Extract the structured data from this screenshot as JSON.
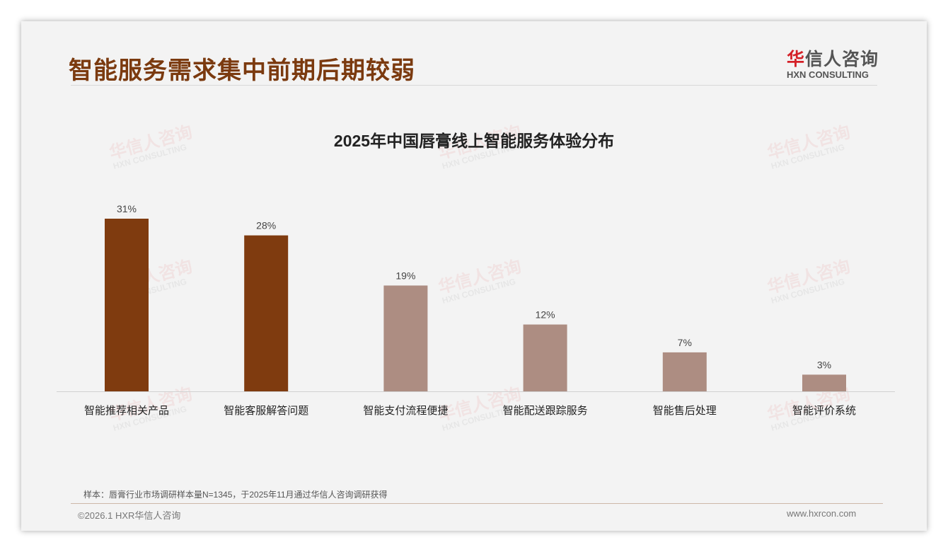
{
  "header": {
    "title": "智能服务需求集中前期后期较弱",
    "logo_cn_accent": "华",
    "logo_cn_rest": "信人咨询",
    "logo_en": "HXN CONSULTING"
  },
  "watermark": {
    "cn": "华信人咨询",
    "en": "HXN CONSULTING"
  },
  "chart_data": {
    "type": "bar",
    "title": "2025年中国唇膏线上智能服务体验分布",
    "categories": [
      "智能推荐相关产品",
      "智能客服解答问题",
      "智能支付流程便捷",
      "智能配送跟踪服务",
      "智能售后处理",
      "智能评价系统"
    ],
    "values": [
      31,
      28,
      19,
      12,
      7,
      3
    ],
    "labels": [
      "31%",
      "28%",
      "19%",
      "12%",
      "7%",
      "3%"
    ],
    "highlight": [
      true,
      true,
      false,
      false,
      false,
      false
    ],
    "colors": {
      "highlight": "#7f3b0f",
      "normal": "#ad8d82"
    },
    "ylim": [
      0,
      31
    ],
    "xlabel": "",
    "ylabel": "",
    "grid": false
  },
  "footer": {
    "note": "样本：唇膏行业市场调研样本量N=1345，于2025年11月通过华信人咨询调研获得",
    "copyright": "©2026.1 HXR华信人咨询",
    "url": "www.hxrcon.com"
  }
}
